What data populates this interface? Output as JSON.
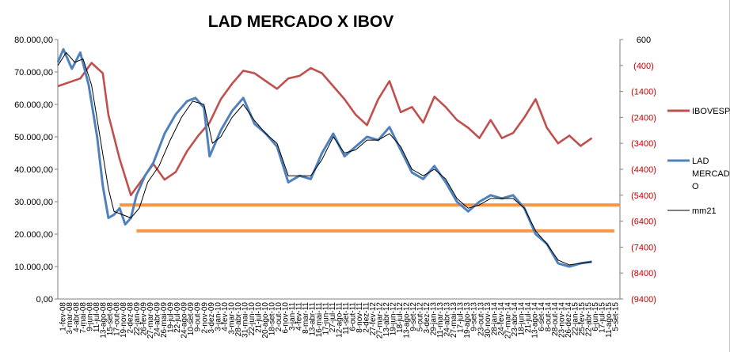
{
  "chart_data": {
    "type": "line",
    "title": "LAD MERCADO X IBOV",
    "y_left": {
      "ticks": [
        "80.000,00",
        "70.000,00",
        "60.000,00",
        "50.000,00",
        "40.000,00",
        "30.000,00",
        "20.000,00",
        "10.000,00",
        "0,00"
      ],
      "tick_values": [
        80000,
        70000,
        60000,
        50000,
        40000,
        30000,
        20000,
        10000,
        0
      ],
      "ylim": [
        0,
        80000
      ]
    },
    "y_right": {
      "ticks": [
        "600",
        "(400)",
        "(1400)",
        "(2400)",
        "(3400)",
        "(4400)",
        "(5400)",
        "(6400)",
        "(7400)",
        "(8400)",
        "(9400)"
      ],
      "tick_values": [
        600,
        -400,
        -1400,
        -2400,
        -3400,
        -4400,
        -5400,
        -6400,
        -7400,
        -8400,
        -9400
      ],
      "ylim": [
        -9400,
        600
      ],
      "tick_color": "#c00000"
    },
    "x_tick_labels": [
      "1-fev-08",
      "3-mar-08",
      "4-abr-08",
      "7-mai-08",
      "9-jun-08",
      "11-jul-08",
      "13-ago-08",
      "15-set-08",
      "17-out-08",
      "19-nov-08",
      "2-dez-08",
      "22-jan-09",
      "26-fev-09",
      "27-mar-09",
      "24-abr-09",
      "26-mai-09",
      "19-jul-09",
      "22-jul-09",
      "24-ago-09",
      "10-set-09",
      "9-out-09",
      "2-nov-09",
      "3-dez-09",
      "3-jan-10",
      "4-fev-10",
      "3-mar-10",
      "28-abr-10",
      "31-mai-10",
      "22-jun-10",
      "21-jul-10",
      "20-ago-10",
      "18-set-10",
      "2-out-10",
      "6-nov-10",
      "3-jan-11",
      "4-fev-11",
      "8-mar-11",
      "13-abr-11",
      "16-mai-11",
      "17-jun-11",
      "27-jul-11",
      "12-ago-11",
      "11-set-11",
      "6-out-11",
      "8-nov-11",
      "2-dez-11",
      "27-fev-12",
      "27-mar-12",
      "13-abr-12",
      "19-jun-12",
      "18-jul-12",
      "13-ago-12",
      "9-set-12",
      "5-out-12",
      "3-dez-12",
      "29-jan-13",
      "11-mar-13",
      "24-abr-13",
      "27-mai-13",
      "17-jul-13",
      "19-ago-13",
      "9-set-13",
      "23-out-13",
      "30-nov-13",
      "28-jan-14",
      "24-fev-14",
      "27-mar-14",
      "23-abr-14",
      "18-jun-14",
      "21-jul-14",
      "13-ago-14",
      "6-set-14",
      "8-out-14",
      "28-out-14",
      "23-nov-14",
      "26-dez-14",
      "22-jan-15",
      "25-fev-15",
      "22-abr-15",
      "6-jun-15",
      "17-jul-15",
      "11-ago-15",
      "5-set-15"
    ],
    "x_range": [
      "1-fev-08",
      "5-set-15"
    ],
    "series": [
      {
        "name": "IBOVESPA",
        "axis": "right",
        "color": "#c0504d",
        "points": [
          [
            0.0,
            -1200
          ],
          [
            0.04,
            -900
          ],
          [
            0.06,
            -300
          ],
          [
            0.08,
            -700
          ],
          [
            0.09,
            -2300
          ],
          [
            0.11,
            -4000
          ],
          [
            0.13,
            -5400
          ],
          [
            0.15,
            -4800
          ],
          [
            0.17,
            -4200
          ],
          [
            0.19,
            -4800
          ],
          [
            0.21,
            -4500
          ],
          [
            0.23,
            -3700
          ],
          [
            0.25,
            -3100
          ],
          [
            0.27,
            -2600
          ],
          [
            0.29,
            -1700
          ],
          [
            0.31,
            -1100
          ],
          [
            0.33,
            -600
          ],
          [
            0.35,
            -700
          ],
          [
            0.37,
            -1000
          ],
          [
            0.39,
            -1300
          ],
          [
            0.41,
            -900
          ],
          [
            0.43,
            -800
          ],
          [
            0.45,
            -500
          ],
          [
            0.47,
            -700
          ],
          [
            0.49,
            -1200
          ],
          [
            0.51,
            -1700
          ],
          [
            0.53,
            -2300
          ],
          [
            0.55,
            -2700
          ],
          [
            0.57,
            -1700
          ],
          [
            0.59,
            -1000
          ],
          [
            0.61,
            -2200
          ],
          [
            0.63,
            -2000
          ],
          [
            0.65,
            -2600
          ],
          [
            0.67,
            -1600
          ],
          [
            0.69,
            -2000
          ],
          [
            0.71,
            -2500
          ],
          [
            0.73,
            -2800
          ],
          [
            0.75,
            -3200
          ],
          [
            0.77,
            -2500
          ],
          [
            0.79,
            -3200
          ],
          [
            0.81,
            -3000
          ],
          [
            0.83,
            -2400
          ],
          [
            0.85,
            -1700
          ],
          [
            0.87,
            -2800
          ],
          [
            0.89,
            -3400
          ],
          [
            0.91,
            -3100
          ],
          [
            0.93,
            -3500
          ],
          [
            0.95,
            -3200
          ]
        ]
      },
      {
        "name": "LAD MERCADO",
        "axis": "left",
        "color": "#4f81bd",
        "points": [
          [
            0.0,
            73000
          ],
          [
            0.01,
            77000
          ],
          [
            0.025,
            71000
          ],
          [
            0.04,
            76000
          ],
          [
            0.055,
            66000
          ],
          [
            0.07,
            50000
          ],
          [
            0.08,
            35000
          ],
          [
            0.09,
            25000
          ],
          [
            0.1,
            26000
          ],
          [
            0.11,
            28000
          ],
          [
            0.12,
            23000
          ],
          [
            0.13,
            25000
          ],
          [
            0.14,
            32000
          ],
          [
            0.155,
            38000
          ],
          [
            0.17,
            42000
          ],
          [
            0.19,
            51000
          ],
          [
            0.21,
            57000
          ],
          [
            0.23,
            61000
          ],
          [
            0.245,
            62000
          ],
          [
            0.26,
            59000
          ],
          [
            0.27,
            44000
          ],
          [
            0.29,
            52000
          ],
          [
            0.31,
            58000
          ],
          [
            0.33,
            62000
          ],
          [
            0.35,
            54000
          ],
          [
            0.37,
            51000
          ],
          [
            0.39,
            47000
          ],
          [
            0.41,
            36000
          ],
          [
            0.43,
            38000
          ],
          [
            0.45,
            37000
          ],
          [
            0.47,
            45000
          ],
          [
            0.49,
            51000
          ],
          [
            0.51,
            44000
          ],
          [
            0.53,
            47000
          ],
          [
            0.55,
            50000
          ],
          [
            0.57,
            49000
          ],
          [
            0.59,
            53000
          ],
          [
            0.61,
            46000
          ],
          [
            0.63,
            39000
          ],
          [
            0.65,
            37000
          ],
          [
            0.67,
            41000
          ],
          [
            0.69,
            36000
          ],
          [
            0.71,
            30000
          ],
          [
            0.73,
            27000
          ],
          [
            0.75,
            30000
          ],
          [
            0.77,
            32000
          ],
          [
            0.79,
            31000
          ],
          [
            0.81,
            32000
          ],
          [
            0.83,
            28000
          ],
          [
            0.85,
            20000
          ],
          [
            0.87,
            17000
          ],
          [
            0.89,
            11000
          ],
          [
            0.91,
            10000
          ],
          [
            0.93,
            11000
          ],
          [
            0.95,
            11500
          ]
        ]
      },
      {
        "name": "mm21",
        "axis": "left",
        "color": "#000000",
        "points": [
          [
            0.0,
            72000
          ],
          [
            0.015,
            76000
          ],
          [
            0.03,
            73000
          ],
          [
            0.045,
            74000
          ],
          [
            0.06,
            66000
          ],
          [
            0.075,
            50000
          ],
          [
            0.09,
            34000
          ],
          [
            0.1,
            27000
          ],
          [
            0.115,
            26000
          ],
          [
            0.13,
            25000
          ],
          [
            0.145,
            28000
          ],
          [
            0.16,
            36000
          ],
          [
            0.18,
            41000
          ],
          [
            0.2,
            49000
          ],
          [
            0.22,
            56000
          ],
          [
            0.24,
            61000
          ],
          [
            0.26,
            60000
          ],
          [
            0.275,
            48000
          ],
          [
            0.29,
            50000
          ],
          [
            0.31,
            56000
          ],
          [
            0.33,
            60000
          ],
          [
            0.35,
            55000
          ],
          [
            0.37,
            51000
          ],
          [
            0.39,
            48000
          ],
          [
            0.41,
            38000
          ],
          [
            0.43,
            38000
          ],
          [
            0.45,
            38000
          ],
          [
            0.47,
            43000
          ],
          [
            0.49,
            50000
          ],
          [
            0.51,
            45000
          ],
          [
            0.53,
            46000
          ],
          [
            0.55,
            49000
          ],
          [
            0.57,
            49000
          ],
          [
            0.59,
            51000
          ],
          [
            0.61,
            47000
          ],
          [
            0.63,
            40000
          ],
          [
            0.65,
            38000
          ],
          [
            0.67,
            40000
          ],
          [
            0.69,
            37000
          ],
          [
            0.71,
            31000
          ],
          [
            0.73,
            28000
          ],
          [
            0.75,
            29000
          ],
          [
            0.77,
            31000
          ],
          [
            0.79,
            31000
          ],
          [
            0.81,
            31000
          ],
          [
            0.83,
            28000
          ],
          [
            0.85,
            21000
          ],
          [
            0.87,
            17000
          ],
          [
            0.89,
            12000
          ],
          [
            0.91,
            10500
          ],
          [
            0.93,
            11000
          ],
          [
            0.95,
            11500
          ]
        ]
      }
    ],
    "reference_lines": [
      {
        "y": 29000,
        "x_from": 0.11,
        "x_to": 1.0,
        "color": "#f79646"
      },
      {
        "y": 21000,
        "x_from": 0.14,
        "x_to": 0.99,
        "color": "#f79646"
      }
    ],
    "legend": {
      "position": "right",
      "entries": [
        {
          "label": "IBOVESPA",
          "display": "IBOVESPA",
          "color": "#c0504d"
        },
        {
          "label": "LAD MERCADO",
          "display_lines": [
            "LAD",
            "MERCADO",
            "O"
          ],
          "color": "#4f81bd"
        },
        {
          "label": "mm21",
          "display": "mm21",
          "color": "#000000"
        }
      ]
    },
    "grid": false
  }
}
